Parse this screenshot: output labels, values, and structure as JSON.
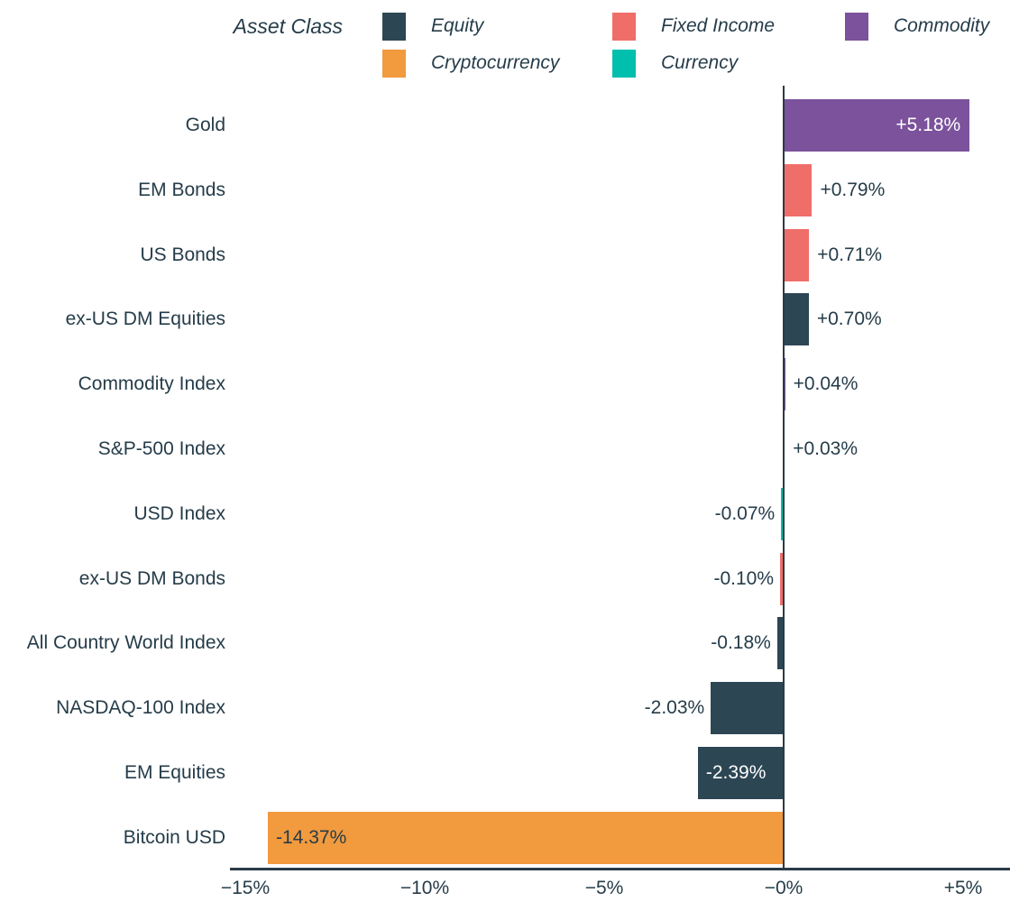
{
  "chart_data": {
    "type": "bar",
    "orientation": "horizontal",
    "unit": "%",
    "legend": {
      "title": "Asset Class",
      "position": "top",
      "items": [
        {
          "label": "Equity",
          "color": "#2d4654",
          "row": 0,
          "col": 0
        },
        {
          "label": "Fixed Income",
          "color": "#ef6e69",
          "row": 0,
          "col": 1
        },
        {
          "label": "Commodity",
          "color": "#7b529b",
          "row": 0,
          "col": 2
        },
        {
          "label": "Cryptocurrency",
          "color": "#f19a3e",
          "row": 1,
          "col": 0
        },
        {
          "label": "Currency",
          "color": "#00bfad",
          "row": 1,
          "col": 1
        }
      ]
    },
    "x_axis": {
      "range": [
        -15.5,
        6.3
      ],
      "grid": false,
      "ticks": [
        {
          "value": -15,
          "label": "−15%"
        },
        {
          "value": -10,
          "label": "−10%"
        },
        {
          "value": -5,
          "label": "−5%"
        },
        {
          "value": 0,
          "label": "−0%"
        },
        {
          "value": 5,
          "label": "+5%"
        }
      ]
    },
    "bars": [
      {
        "category": "Gold",
        "asset_class": "Commodity",
        "value": 5.18,
        "value_label": "+5.18%",
        "color": "#7b529b",
        "label_placement": "inside",
        "label_tone": "light"
      },
      {
        "category": "EM Bonds",
        "asset_class": "Fixed Income",
        "value": 0.79,
        "value_label": "+0.79%",
        "color": "#ef6e69",
        "label_placement": "outside",
        "label_tone": "dark"
      },
      {
        "category": "US Bonds",
        "asset_class": "Fixed Income",
        "value": 0.71,
        "value_label": "+0.71%",
        "color": "#ef6e69",
        "label_placement": "outside",
        "label_tone": "dark"
      },
      {
        "category": "ex-US DM Equities",
        "asset_class": "Equity",
        "value": 0.7,
        "value_label": "+0.70%",
        "color": "#2d4654",
        "label_placement": "outside",
        "label_tone": "dark"
      },
      {
        "category": "Commodity Index",
        "asset_class": "Commodity",
        "value": 0.04,
        "value_label": "+0.04%",
        "color": "#7b529b",
        "label_placement": "outside",
        "label_tone": "dark"
      },
      {
        "category": "S&P-500 Index",
        "asset_class": "Equity",
        "value": 0.03,
        "value_label": "+0.03%",
        "color": "#2d4654",
        "label_placement": "outside",
        "label_tone": "dark"
      },
      {
        "category": "USD Index",
        "asset_class": "Currency",
        "value": -0.07,
        "value_label": "-0.07%",
        "color": "#00bfad",
        "label_placement": "outside",
        "label_tone": "dark"
      },
      {
        "category": "ex-US DM Bonds",
        "asset_class": "Fixed Income",
        "value": -0.1,
        "value_label": "-0.10%",
        "color": "#ef6e69",
        "label_placement": "outside",
        "label_tone": "dark"
      },
      {
        "category": "All Country World Index",
        "asset_class": "Equity",
        "value": -0.18,
        "value_label": "-0.18%",
        "color": "#2d4654",
        "label_placement": "outside",
        "label_tone": "dark"
      },
      {
        "category": "NASDAQ-100 Index",
        "asset_class": "Equity",
        "value": -2.03,
        "value_label": "-2.03%",
        "color": "#2d4654",
        "label_placement": "outside",
        "label_tone": "dark"
      },
      {
        "category": "EM Equities",
        "asset_class": "Equity",
        "value": -2.39,
        "value_label": "-2.39%",
        "color": "#2d4654",
        "label_placement": "inside",
        "label_tone": "light"
      },
      {
        "category": "Bitcoin USD",
        "asset_class": "Cryptocurrency",
        "value": -14.37,
        "value_label": "-14.37%",
        "color": "#f19a3e",
        "label_placement": "inside",
        "label_tone": "dark"
      }
    ]
  },
  "colors": {
    "background": "#ffffff",
    "axis": "#2a3b47",
    "text": "#253c49",
    "label_light": "#ffffff",
    "equity": "#2d4654",
    "fixed_income": "#ef6e69",
    "commodity": "#7b529b",
    "cryptocurrency": "#f19a3e",
    "currency": "#00bfad"
  }
}
